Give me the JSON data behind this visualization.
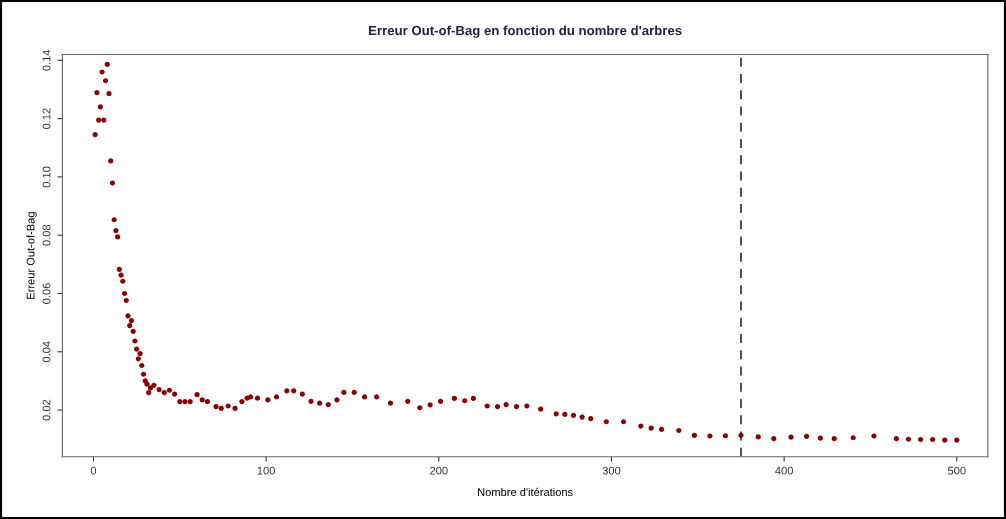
{
  "chart_data": {
    "type": "scatter",
    "title": "Erreur Out-of-Bag en fonction du nombre d'arbres",
    "xlabel": "Nombre d'itérations",
    "ylabel": "Erreur Out-of-Bag",
    "xlim": [
      -18,
      518
    ],
    "ylim": [
      0.004,
      0.142
    ],
    "xticks": [
      0,
      100,
      200,
      300,
      400,
      500
    ],
    "yticks": [
      {
        "value": 0.02,
        "label": "0.02"
      },
      {
        "value": 0.04,
        "label": "0.04"
      },
      {
        "value": 0.06,
        "label": "0.06"
      },
      {
        "value": 0.08,
        "label": "0.08"
      },
      {
        "value": 0.1,
        "label": "0.10"
      },
      {
        "value": 0.12,
        "label": "0.12"
      },
      {
        "value": 0.14,
        "label": "0.14"
      }
    ],
    "series": [
      {
        "color": "#8b0000",
        "x": [
          1,
          2,
          3,
          4,
          5,
          6,
          7,
          8,
          9,
          10,
          11,
          12,
          13,
          14,
          15,
          16,
          17,
          18,
          19,
          20,
          21,
          22,
          23,
          24,
          25,
          26,
          27,
          28,
          29,
          30,
          31,
          32,
          33,
          35,
          38,
          41,
          44,
          47,
          50,
          53,
          56,
          60,
          63,
          66,
          71,
          74,
          78,
          82,
          86,
          89,
          91,
          95,
          101,
          106,
          112,
          116,
          121,
          126,
          131,
          136,
          141,
          145,
          151,
          157,
          164,
          172,
          182,
          189,
          195,
          201,
          209,
          215,
          220,
          228,
          234,
          239,
          245,
          251,
          259,
          268,
          273,
          278,
          283,
          288,
          297,
          307,
          317,
          323,
          329,
          339,
          348,
          357,
          366,
          375,
          385,
          394,
          404,
          413,
          421,
          429,
          440,
          452,
          465,
          472,
          479,
          486,
          493,
          500
        ],
        "values": [
          0.1145,
          0.1289,
          0.1195,
          0.124,
          0.136,
          0.1195,
          0.133,
          0.1386,
          0.1286,
          0.1055,
          0.0979,
          0.0853,
          0.0816,
          0.0794,
          0.0683,
          0.0663,
          0.0642,
          0.06,
          0.0576,
          0.0523,
          0.049,
          0.0507,
          0.047,
          0.0437,
          0.0409,
          0.0376,
          0.0394,
          0.0353,
          0.0323,
          0.03,
          0.0289,
          0.026,
          0.0276,
          0.0285,
          0.027,
          0.026,
          0.0268,
          0.0255,
          0.0229,
          0.0229,
          0.0229,
          0.0253,
          0.0235,
          0.0229,
          0.0212,
          0.0206,
          0.0214,
          0.0206,
          0.0229,
          0.0241,
          0.0245,
          0.0241,
          0.0235,
          0.0245,
          0.0266,
          0.0266,
          0.0255,
          0.023,
          0.0224,
          0.0219,
          0.0235,
          0.0261,
          0.0261,
          0.0245,
          0.0245,
          0.0224,
          0.023,
          0.0208,
          0.0218,
          0.023,
          0.024,
          0.0232,
          0.024,
          0.0214,
          0.0212,
          0.0219,
          0.0212,
          0.0214,
          0.0203,
          0.0187,
          0.0185,
          0.0182,
          0.0176,
          0.0171,
          0.016,
          0.016,
          0.0145,
          0.0138,
          0.0134,
          0.013,
          0.0113,
          0.0111,
          0.0112,
          0.0113,
          0.0108,
          0.0102,
          0.0107,
          0.011,
          0.0104,
          0.0102,
          0.0105,
          0.0111,
          0.0102,
          0.01,
          0.0099,
          0.0099,
          0.0097,
          0.0097
        ]
      }
    ],
    "ref_lines": [
      {
        "axis": "x",
        "value": 375,
        "color": "#404040",
        "line_style": "dashed"
      }
    ],
    "marker": "circle",
    "grid": false,
    "legend": false
  }
}
